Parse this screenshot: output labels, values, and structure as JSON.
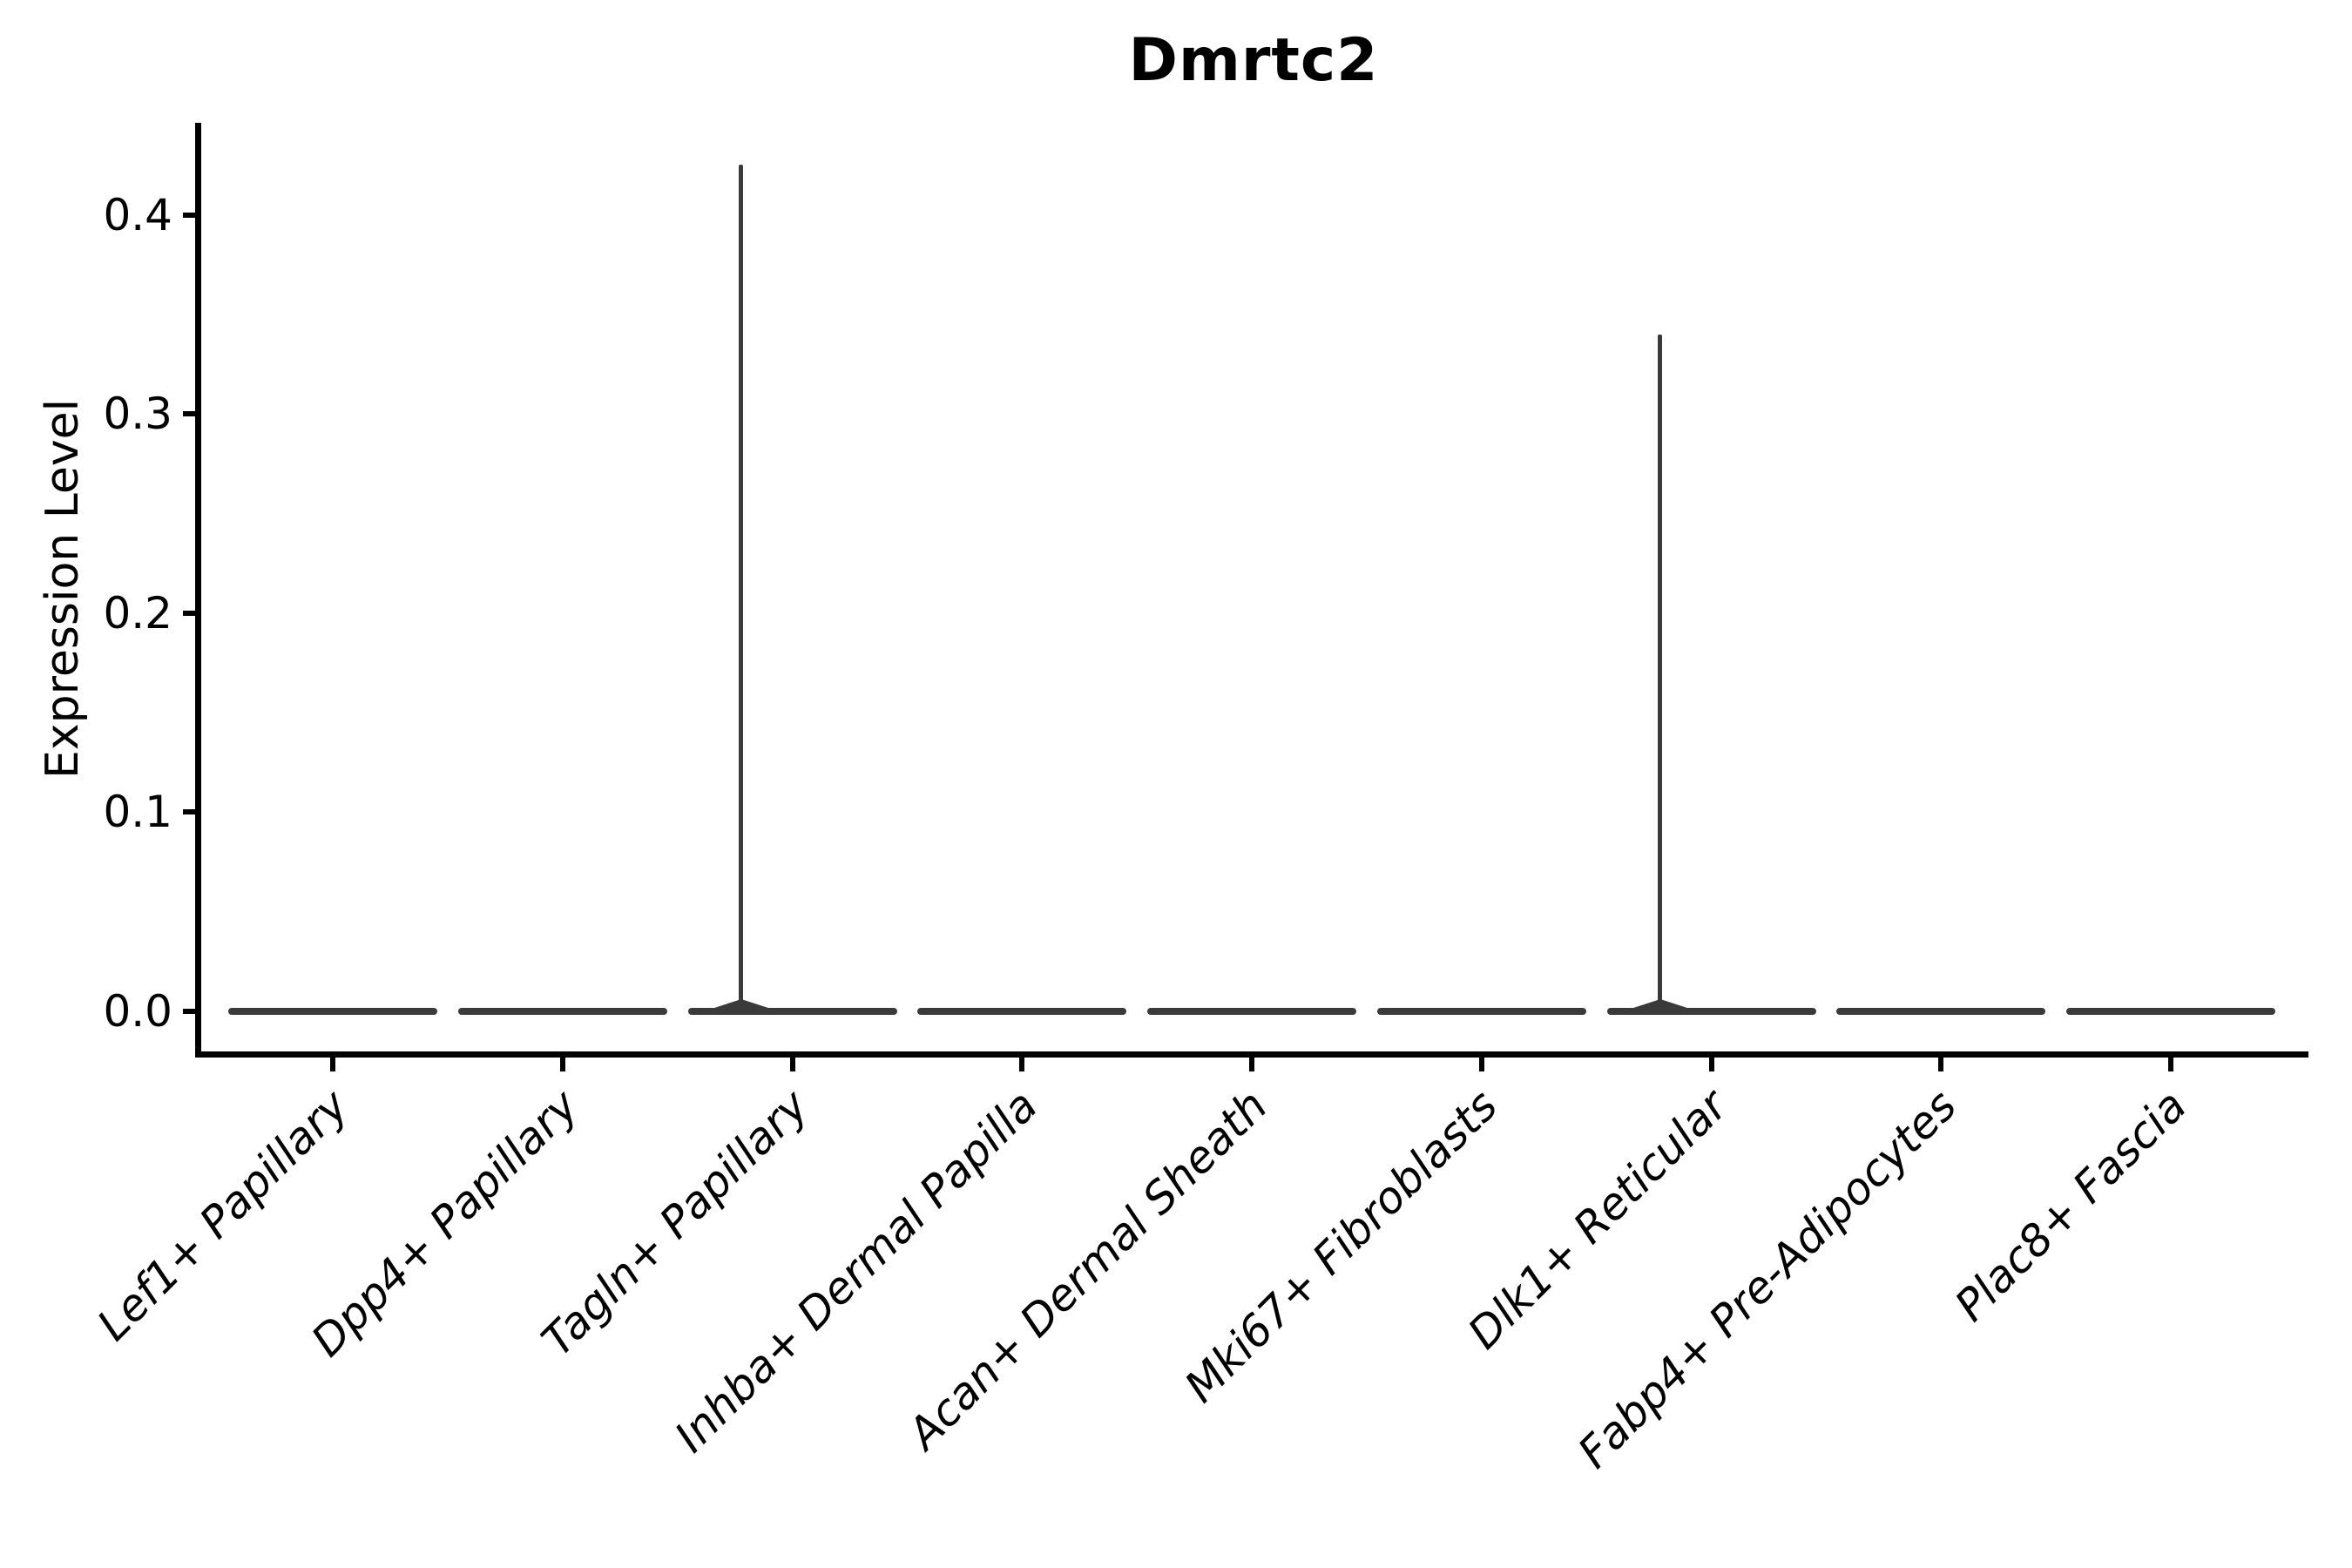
{
  "title": "Dmrtc2",
  "axes": {
    "ylabel": "Expression Level",
    "ytick_labels": [
      "0.0",
      "0.1",
      "0.2",
      "0.3",
      "0.4"
    ]
  },
  "chart_data": {
    "type": "violin",
    "title": "Dmrtc2",
    "xlabel": "",
    "ylabel": "Expression Level",
    "ylim": [
      -0.021,
      0.446
    ],
    "yticks": [
      0.0,
      0.1,
      0.2,
      0.3,
      0.4
    ],
    "ytick_labels": [
      "0.0",
      "0.1",
      "0.2",
      "0.3",
      "0.4"
    ],
    "grid": false,
    "legend": "none",
    "categories": [
      "Lef1+ Papillary",
      "Dpp4+ Papillary",
      "Tagln+ Papillary",
      "Inhba+ Dermal Papilla",
      "Acan+ Dermal Sheath",
      "Mki67+ Fibroblasts",
      "Dlk1+ Reticular",
      "Fabp4+ Pre-Adipocytes",
      "Plac8+ Fascia"
    ],
    "violins": [
      {
        "label": "Lef1+ Papillary",
        "median": 0.0,
        "bulk_value": 0.0,
        "max": 0.0
      },
      {
        "label": "Dpp4+ Papillary",
        "median": 0.0,
        "bulk_value": 0.0,
        "max": 0.0
      },
      {
        "label": "Tagln+ Papillary",
        "median": 0.0,
        "bulk_value": 0.0,
        "max": 0.425
      },
      {
        "label": "Inhba+ Dermal Papilla",
        "median": 0.0,
        "bulk_value": 0.0,
        "max": 0.0
      },
      {
        "label": "Acan+ Dermal Sheath",
        "median": 0.0,
        "bulk_value": 0.0,
        "max": 0.0
      },
      {
        "label": "Mki67+ Fibroblasts",
        "median": 0.0,
        "bulk_value": 0.0,
        "max": 0.0
      },
      {
        "label": "Dlk1+ Reticular",
        "median": 0.0,
        "bulk_value": 0.0,
        "max": 0.34
      },
      {
        "label": "Fabp4+ Pre-Adipocytes",
        "median": 0.0,
        "bulk_value": 0.0,
        "max": 0.0
      },
      {
        "label": "Plac8+ Fascia",
        "median": 0.0,
        "bulk_value": 0.0,
        "max": 0.0
      }
    ],
    "description": "Violin plot of Dmrtc2 expression; all populations concentrated at 0 with thin high-expression tails in Tagln+ Papillary (to ~0.425) and Dlk1+ Reticular (to ~0.34)."
  }
}
